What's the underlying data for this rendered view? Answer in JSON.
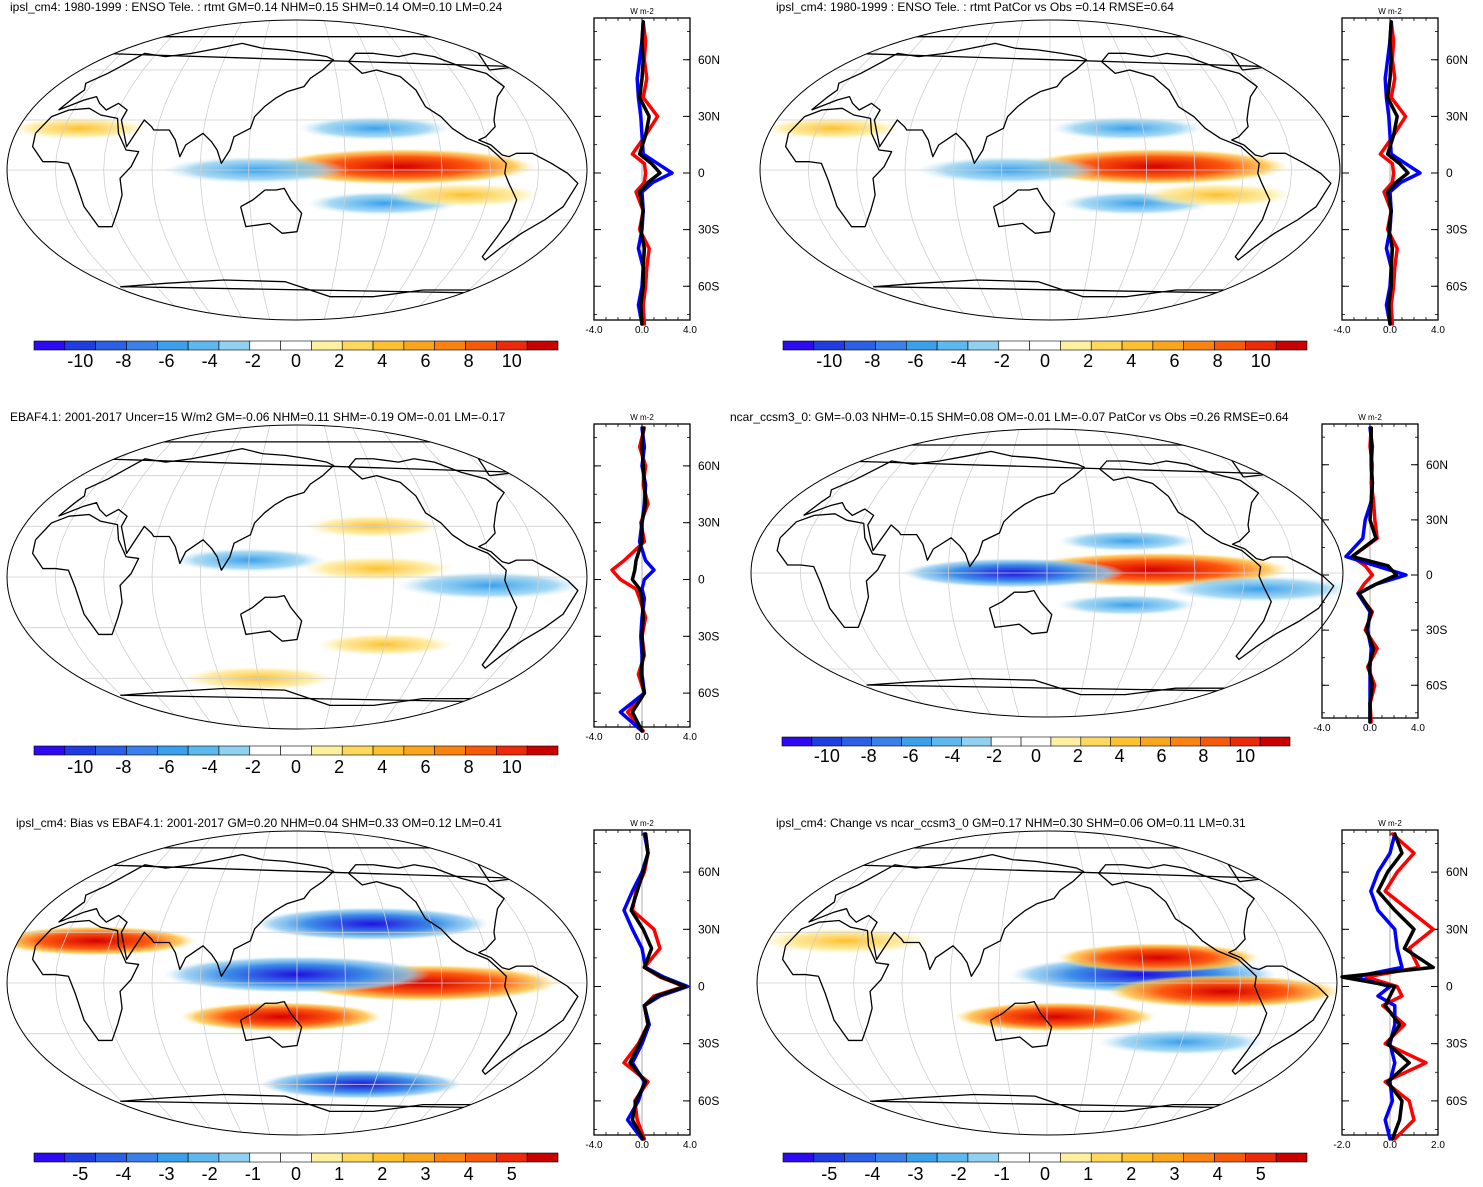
{
  "colors": {
    "palette": [
      "#2d0af0",
      "#1f3de0",
      "#2a5fe6",
      "#3a7fea",
      "#3aa0ec",
      "#5cb8ee",
      "#90d0f0",
      "#ffffff",
      "#ffffff",
      "#fff0a0",
      "#fed85c",
      "#fdc030",
      "#fba51e",
      "#f98210",
      "#f55a0a",
      "#ea2a08",
      "#c80000"
    ],
    "model_line": "#ff0000",
    "obs_line": "#0000ff",
    "diff_line": "#000000"
  },
  "chart_data": [
    {
      "type": "heatmap",
      "panel": "top-left",
      "title": "ipsl_cm4: 1980-1999 : ENSO Tele. : rtmt GM=0.14 NHM=0.15 SHM=0.14 OM=0.10 LM=0.24",
      "colorbar_ticks": [
        "-10",
        "-8",
        "-6",
        "-4",
        "-2",
        "0",
        "2",
        "4",
        "6",
        "8",
        "10"
      ],
      "field_features": [
        {
          "lat": 2,
          "lon": 215,
          "value": 10
        },
        {
          "lat": 0,
          "lon": 125,
          "value": -5
        },
        {
          "lat": 25,
          "lon": 200,
          "value": -3
        },
        {
          "lat": 25,
          "lon": 10,
          "value": 2
        },
        {
          "lat": -20,
          "lon": 205,
          "value": -3
        },
        {
          "lat": -15,
          "lon": 255,
          "value": 3
        }
      ],
      "zonal_profile": {
        "units": "W m-2",
        "xlim": [
          -4.0,
          4.0
        ],
        "xticks": [
          "-4.0",
          "0.0",
          "4.0"
        ],
        "lat_ticks": [
          "60N",
          "30N",
          "0",
          "30S",
          "60S"
        ],
        "lat": [
          80,
          70,
          60,
          50,
          40,
          30,
          20,
          10,
          5,
          0,
          -5,
          -10,
          -20,
          -30,
          -40,
          -50,
          -60,
          -70,
          -80
        ],
        "red": [
          0.1,
          0.3,
          0.2,
          0.4,
          0.1,
          1.3,
          0.3,
          -0.8,
          0.2,
          0.3,
          0.2,
          -0.5,
          0.1,
          -0.2,
          0.6,
          0.4,
          0.3,
          0.1,
          0.2
        ],
        "blue": [
          0.1,
          0.0,
          -0.2,
          -0.4,
          -0.3,
          -0.1,
          0.0,
          0.1,
          1.3,
          2.5,
          0.9,
          0.0,
          0.1,
          0.0,
          -0.3,
          0.1,
          0.0,
          -0.3,
          0.0
        ],
        "black": [
          0.1,
          0.0,
          0.1,
          0.0,
          -0.2,
          0.6,
          0.3,
          -0.2,
          0.8,
          1.5,
          0.5,
          -0.2,
          0.1,
          -0.1,
          0.2,
          0.1,
          0.1,
          -0.1,
          0.0
        ]
      }
    },
    {
      "type": "heatmap",
      "panel": "top-right",
      "title": "ipsl_cm4: 1980-1999 : ENSO Tele. : rtmt PatCor vs Obs =0.14 RMSE=0.64",
      "colorbar_ticks": [
        "-10",
        "-8",
        "-6",
        "-4",
        "-2",
        "0",
        "2",
        "4",
        "6",
        "8",
        "10"
      ],
      "field_features": [
        {
          "lat": 2,
          "lon": 215,
          "value": 10
        },
        {
          "lat": 0,
          "lon": 125,
          "value": -5
        },
        {
          "lat": 25,
          "lon": 200,
          "value": -3
        },
        {
          "lat": 25,
          "lon": 10,
          "value": 2
        },
        {
          "lat": -20,
          "lon": 205,
          "value": -3
        },
        {
          "lat": -15,
          "lon": 255,
          "value": 3
        }
      ],
      "zonal_profile": {
        "units": "W m-2",
        "xlim": [
          -4.0,
          4.0
        ],
        "xticks": [
          "-4.0",
          "0.0",
          "4.0"
        ],
        "lat_ticks": [
          "60N",
          "30N",
          "0",
          "30S",
          "60S"
        ],
        "lat": [
          80,
          70,
          60,
          50,
          40,
          30,
          20,
          10,
          5,
          0,
          -5,
          -10,
          -20,
          -30,
          -40,
          -50,
          -60,
          -70,
          -80
        ],
        "red": [
          0.1,
          0.3,
          0.2,
          0.4,
          0.1,
          1.3,
          0.3,
          -0.8,
          0.2,
          0.3,
          0.2,
          -0.5,
          0.1,
          -0.2,
          0.6,
          0.4,
          0.3,
          0.1,
          0.2
        ],
        "blue": [
          0.1,
          0.0,
          -0.2,
          -0.4,
          -0.3,
          -0.1,
          0.0,
          0.1,
          1.3,
          2.5,
          0.9,
          0.0,
          0.1,
          0.0,
          -0.3,
          0.1,
          0.0,
          -0.3,
          0.0
        ],
        "black": [
          0.1,
          0.0,
          0.1,
          0.0,
          -0.2,
          0.6,
          0.3,
          -0.2,
          0.8,
          1.5,
          0.5,
          -0.2,
          0.1,
          -0.1,
          0.2,
          0.1,
          0.1,
          -0.1,
          0.0
        ]
      }
    },
    {
      "type": "heatmap",
      "panel": "middle-left",
      "title": "EBAF4.1: 2001-2017 Uncer=15 W/m2 GM=-0.06 NHM=0.11 SHM=-0.19 OM=-0.01 LM=-0.17",
      "colorbar_ticks": [
        "-10",
        "-8",
        "-6",
        "-4",
        "-2",
        "0",
        "2",
        "4",
        "6",
        "8",
        "10"
      ],
      "field_features": [
        {
          "lat": 5,
          "lon": 200,
          "value": 3
        },
        {
          "lat": -5,
          "lon": 270,
          "value": -5
        },
        {
          "lat": 30,
          "lon": 200,
          "value": 2
        },
        {
          "lat": -40,
          "lon": 210,
          "value": 2
        },
        {
          "lat": 10,
          "lon": 120,
          "value": -3
        },
        {
          "lat": -60,
          "lon": 120,
          "value": 3
        }
      ],
      "zonal_profile": {
        "units": "W m-2",
        "xlim": [
          -4.0,
          4.0
        ],
        "xticks": [
          "-4.0",
          "0.0",
          "4.0"
        ],
        "lat_ticks": [
          "60N",
          "30N",
          "0",
          "30S",
          "60S"
        ],
        "lat": [
          80,
          70,
          60,
          50,
          40,
          30,
          20,
          10,
          5,
          0,
          -5,
          -10,
          -20,
          -30,
          -40,
          -50,
          -60,
          -70,
          -80
        ],
        "red": [
          0.2,
          -0.2,
          0.3,
          0.1,
          0.5,
          -0.1,
          0.2,
          -1.5,
          -2.5,
          -1.8,
          -0.5,
          -0.2,
          0.3,
          0.0,
          0.2,
          -0.3,
          0.2,
          -1.2,
          0.1
        ],
        "blue": [
          0.0,
          0.2,
          0.0,
          0.3,
          0.2,
          0.0,
          -0.2,
          0.3,
          1.0,
          0.2,
          0.0,
          0.2,
          0.0,
          -0.1,
          0.0,
          0.0,
          0.2,
          -1.8,
          0.0
        ],
        "black": [
          0.1,
          0.0,
          0.1,
          0.2,
          0.3,
          0.0,
          0.0,
          -0.5,
          -0.6,
          -0.8,
          -0.2,
          0.0,
          0.1,
          0.0,
          0.1,
          -0.1,
          0.2,
          -0.8,
          0.0
        ]
      }
    },
    {
      "type": "heatmap",
      "panel": "middle-right",
      "title": "ncar_ccsm3_0: GM=-0.03 NHM=-0.15 SHM=0.08 OM=-0.01 LM=-0.07 PatCor vs Obs =0.26 RMSE=0.64",
      "colorbar_ticks": [
        "-10",
        "-8",
        "-6",
        "-4",
        "-2",
        "0",
        "2",
        "4",
        "6",
        "8",
        "10"
      ],
      "field_features": [
        {
          "lat": 2,
          "lon": 215,
          "value": 10
        },
        {
          "lat": 0,
          "lon": 130,
          "value": -7
        },
        {
          "lat": -10,
          "lon": 280,
          "value": -5
        },
        {
          "lat": 20,
          "lon": 200,
          "value": -2
        },
        {
          "lat": -20,
          "lon": 200,
          "value": -2
        }
      ],
      "zonal_profile": {
        "units": "W m-2",
        "xlim": [
          -4.0,
          4.0
        ],
        "xticks": [
          "-4.0",
          "0.0",
          "4.0"
        ],
        "lat_ticks": [
          "60N",
          "30N",
          "0",
          "30S",
          "60S"
        ],
        "lat": [
          80,
          70,
          60,
          50,
          40,
          30,
          20,
          10,
          5,
          0,
          -5,
          -10,
          -20,
          -30,
          -40,
          -50,
          -60,
          -70,
          -80
        ],
        "red": [
          0.1,
          0.0,
          0.2,
          0.1,
          0.3,
          0.4,
          0.6,
          -1.5,
          -0.4,
          0.2,
          -0.5,
          -1.0,
          0.2,
          -0.4,
          0.6,
          -0.2,
          0.4,
          0.0,
          0.1
        ],
        "blue": [
          0.0,
          0.2,
          0.1,
          0.2,
          0.1,
          -0.4,
          -0.6,
          -2.0,
          0.5,
          3.0,
          0.5,
          -1.0,
          0.0,
          -0.2,
          0.1,
          0.0,
          0.0,
          0.0,
          0.0
        ],
        "black": [
          0.1,
          0.1,
          0.1,
          0.2,
          0.1,
          0.0,
          0.5,
          -1.5,
          1.5,
          2.2,
          0.5,
          -0.9,
          0.1,
          -0.3,
          0.3,
          -0.1,
          0.2,
          0.0,
          0.0
        ]
      }
    },
    {
      "type": "heatmap",
      "panel": "bottom-left",
      "title": "ipsl_cm4: Bias vs EBAF4.1: 2001-2017 GM=0.20 NHM=0.04 SHM=0.33 OM=0.12 LM=0.41",
      "colorbar_ticks": [
        "-5",
        "-4",
        "-3",
        "-2",
        "-1",
        "0",
        "1",
        "2",
        "3",
        "4",
        "5"
      ],
      "field_features": [
        {
          "lat": 0,
          "lon": 230,
          "value": 5
        },
        {
          "lat": 5,
          "lon": 150,
          "value": -5
        },
        {
          "lat": 35,
          "lon": 200,
          "value": -4
        },
        {
          "lat": -20,
          "lon": 140,
          "value": 3
        },
        {
          "lat": 25,
          "lon": 20,
          "value": 3
        },
        {
          "lat": -60,
          "lon": 200,
          "value": -3
        }
      ],
      "zonal_profile": {
        "units": "W m-2",
        "xlim": [
          -4.0,
          4.0
        ],
        "xticks": [
          "-4.0",
          "0.0",
          "4.0"
        ],
        "lat_ticks": [
          "60N",
          "30N",
          "0",
          "30S",
          "60S"
        ],
        "lat": [
          80,
          70,
          60,
          50,
          40,
          30,
          20,
          10,
          5,
          0,
          -5,
          -10,
          -20,
          -30,
          -40,
          -50,
          -60,
          -70,
          -80
        ],
        "red": [
          0.3,
          0.5,
          0.2,
          -0.5,
          -0.8,
          1.0,
          1.5,
          0.2,
          1.5,
          3.5,
          1.0,
          0.2,
          0.5,
          -0.3,
          -1.5,
          0.5,
          -0.6,
          -0.4,
          0.2
        ],
        "blue": [
          0.2,
          0.5,
          0.0,
          -0.8,
          -1.5,
          -0.8,
          0.0,
          0.3,
          1.8,
          3.8,
          1.5,
          0.2,
          0.6,
          0.0,
          -0.8,
          0.2,
          -0.3,
          -1.2,
          0.0
        ],
        "black": [
          0.3,
          0.5,
          0.1,
          -0.4,
          -0.9,
          0.1,
          0.8,
          0.2,
          1.6,
          3.6,
          1.2,
          0.2,
          0.5,
          -0.2,
          -1.0,
          0.3,
          -0.5,
          -0.8,
          0.1
        ]
      }
    },
    {
      "type": "heatmap",
      "panel": "bottom-right",
      "title": "ipsl_cm4: Change vs ncar_ccsm3_0 GM=0.17 NHM=0.30 SHM=0.06 OM=0.11 LM=0.31",
      "colorbar_ticks": [
        "-5",
        "-4",
        "-3",
        "-2",
        "-1",
        "0",
        "1",
        "2",
        "3",
        "4",
        "5"
      ],
      "field_features": [
        {
          "lat": 5,
          "lon": 210,
          "value": -5
        },
        {
          "lat": -5,
          "lon": 260,
          "value": 4
        },
        {
          "lat": 15,
          "lon": 220,
          "value": 3
        },
        {
          "lat": -20,
          "lon": 155,
          "value": 3
        },
        {
          "lat": 25,
          "lon": 20,
          "value": 2
        },
        {
          "lat": -35,
          "lon": 240,
          "value": -2
        }
      ],
      "zonal_profile": {
        "units": "W m-2",
        "xlim": [
          -2.0,
          2.0
        ],
        "xticks": [
          "-2.0",
          "0.0",
          "2.0"
        ],
        "lat_ticks": [
          "60N",
          "30N",
          "0",
          "30S",
          "60S"
        ],
        "lat": [
          80,
          70,
          60,
          50,
          40,
          30,
          20,
          10,
          5,
          0,
          -5,
          -10,
          -20,
          -30,
          -40,
          -50,
          -60,
          -70,
          -80
        ],
        "red": [
          0.1,
          1.0,
          0.3,
          -0.2,
          0.8,
          1.8,
          0.8,
          1.2,
          -1.0,
          0.3,
          0.5,
          -0.3,
          0.6,
          -0.2,
          1.5,
          -0.2,
          0.8,
          1.0,
          0.2
        ],
        "blue": [
          0.2,
          0.0,
          -0.5,
          -0.8,
          -0.5,
          0.2,
          0.3,
          0.5,
          -1.5,
          0.0,
          -0.5,
          0.2,
          0.2,
          0.0,
          0.2,
          0.0,
          0.1,
          -0.2,
          0.0
        ],
        "black": [
          0.2,
          0.5,
          -0.1,
          -0.5,
          0.2,
          1.0,
          0.6,
          1.8,
          -2.0,
          0.2,
          0.0,
          -0.2,
          0.4,
          -0.1,
          0.8,
          -0.1,
          0.5,
          0.4,
          0.1
        ]
      }
    }
  ]
}
